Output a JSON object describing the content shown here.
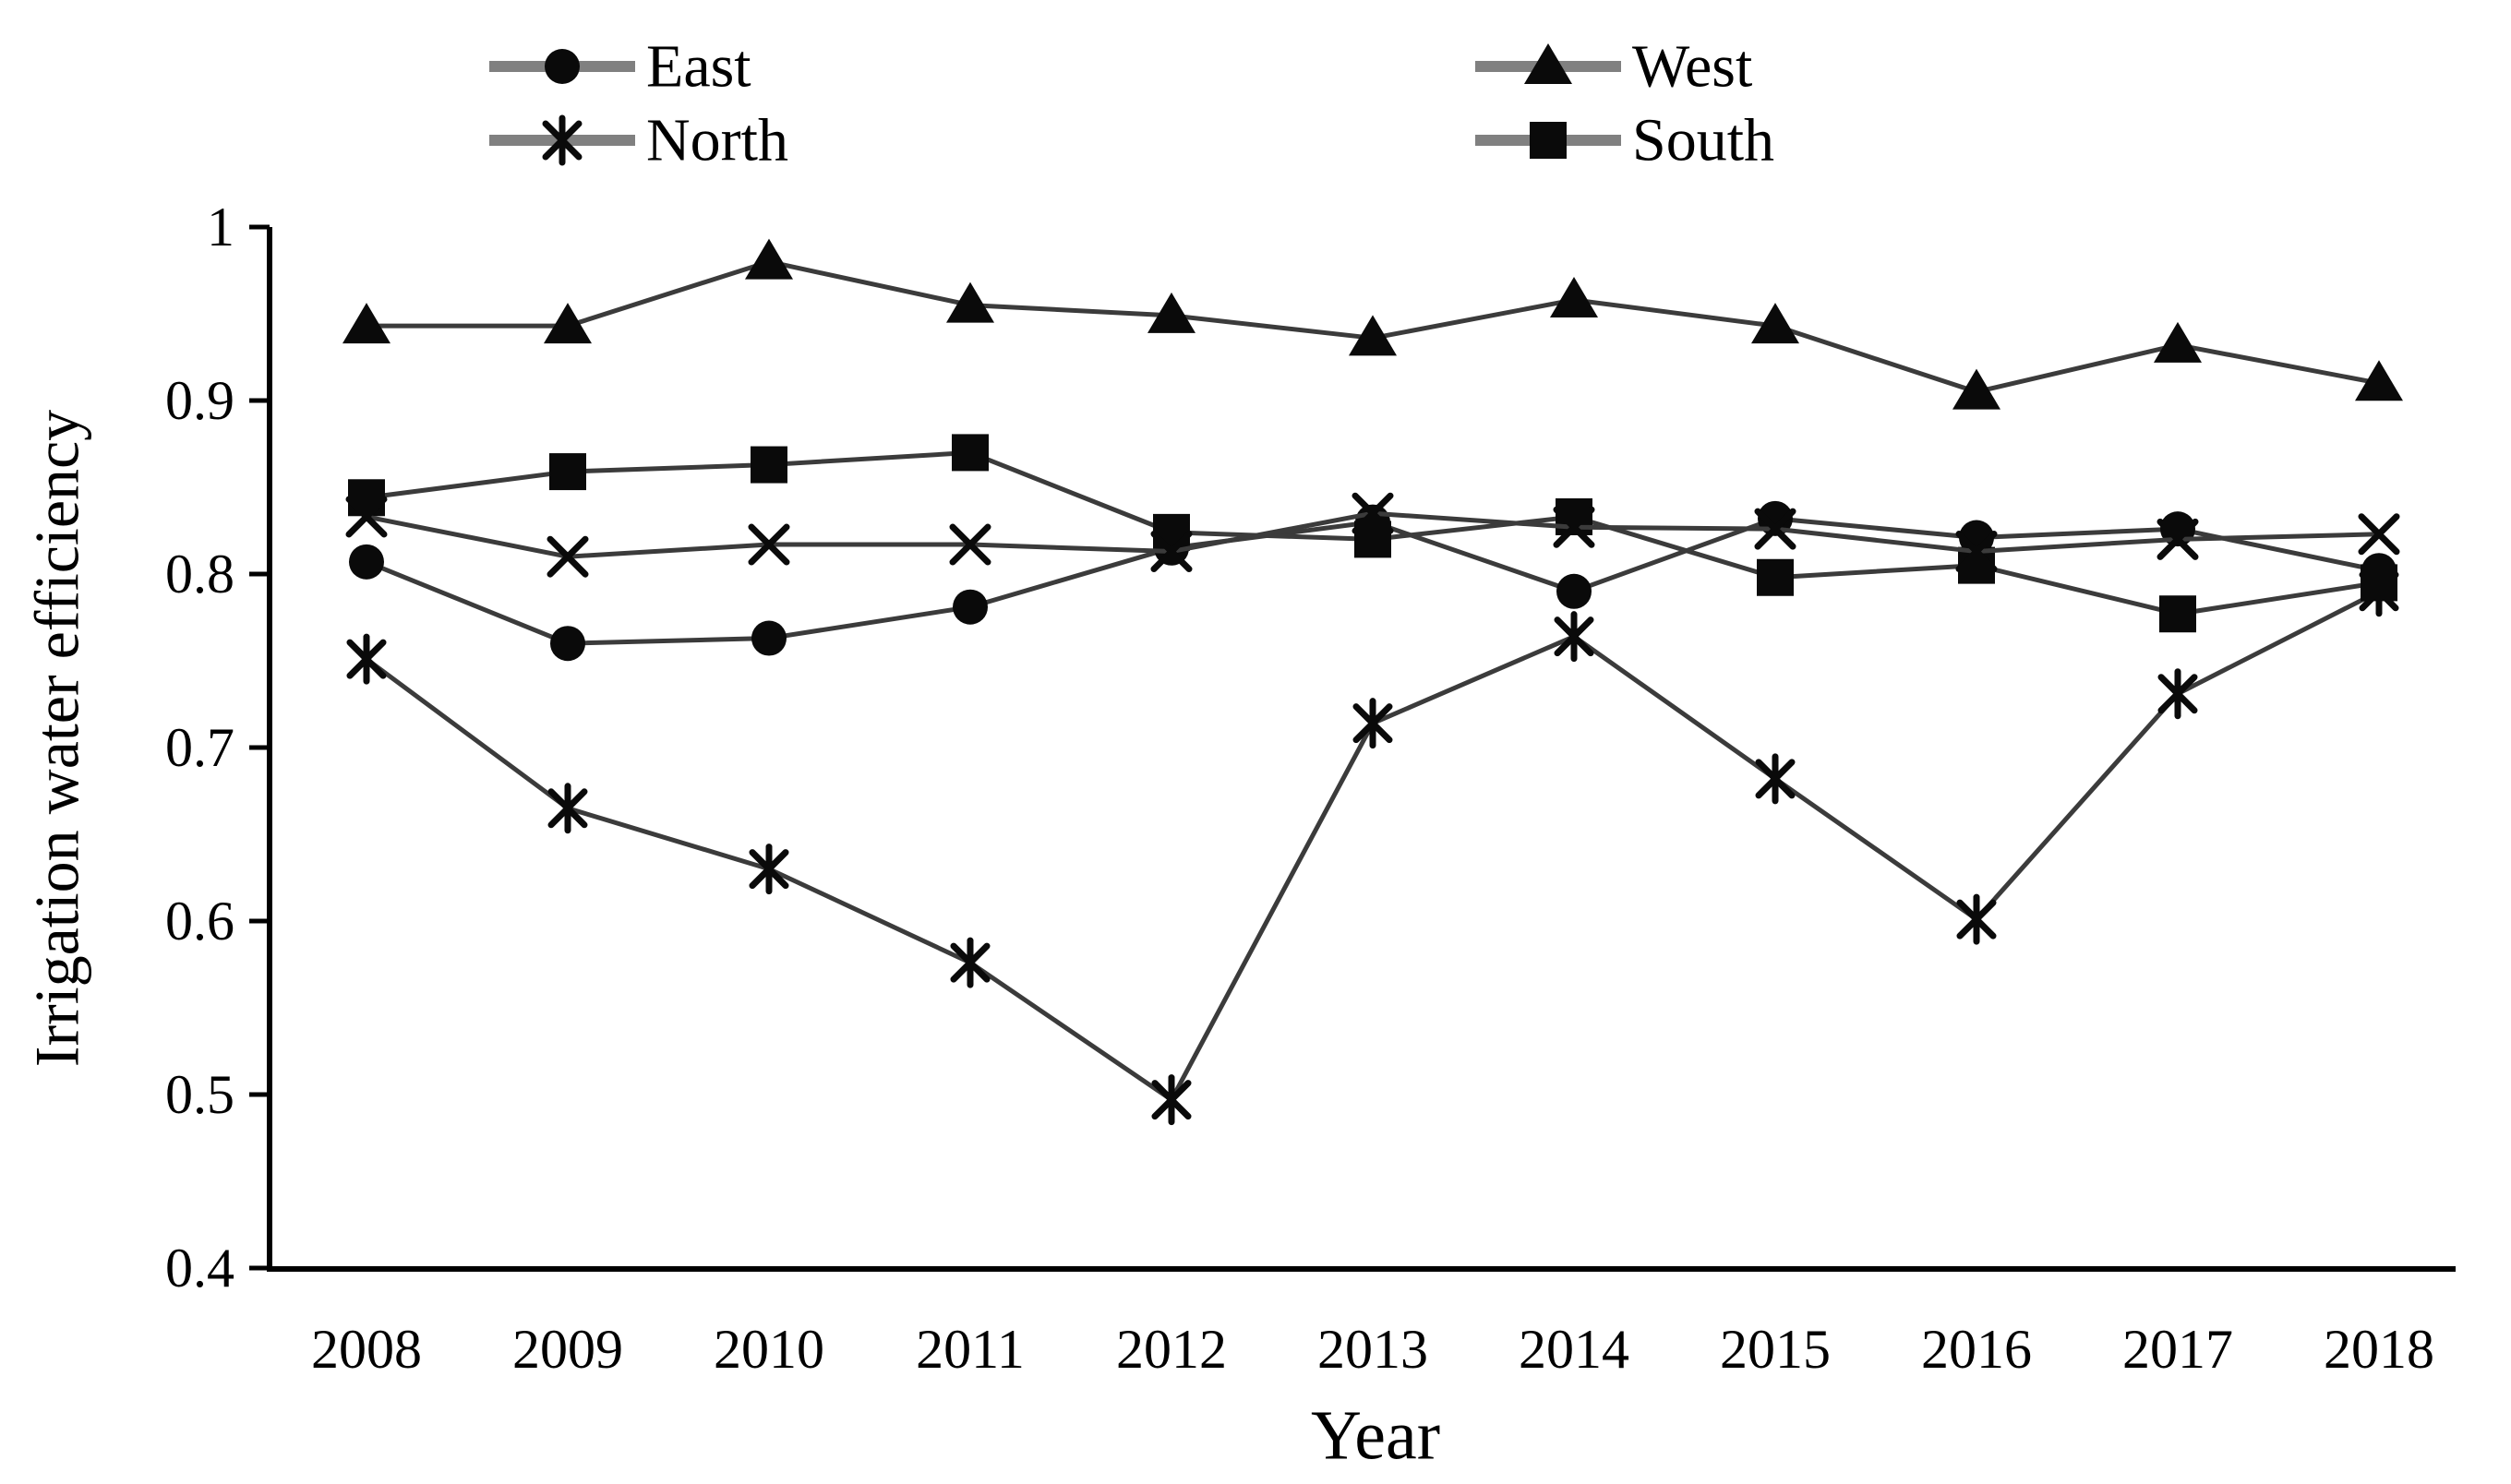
{
  "chart_data": {
    "type": "line",
    "title": "",
    "xlabel": "Year",
    "ylabel": "Irrigation water efficiency",
    "x_categories": [
      "2008",
      "2009",
      "2010",
      "2011",
      "2012",
      "2013",
      "2014",
      "2015",
      "2016",
      "2017",
      "2018"
    ],
    "ylim": [
      0.4,
      1.0
    ],
    "yticks": [
      {
        "value": 1.0,
        "label": "1"
      },
      {
        "value": 0.9,
        "label": "0.9"
      },
      {
        "value": 0.8,
        "label": "0.8"
      },
      {
        "value": 0.7,
        "label": "0.7"
      },
      {
        "value": 0.6,
        "label": "0.6"
      },
      {
        "value": 0.5,
        "label": "0.5"
      },
      {
        "value": 0.4,
        "label": "0.4"
      }
    ],
    "grid": false,
    "legend_position": "top, two columns",
    "series": [
      {
        "name": "west",
        "label": "West",
        "marker": "triangle",
        "values": [
          0.943,
          0.943,
          0.98,
          0.955,
          0.949,
          0.936,
          0.958,
          0.943,
          0.905,
          0.932,
          0.91
        ]
      },
      {
        "name": "east",
        "label": "East",
        "marker": "circle",
        "values": [
          0.807,
          0.76,
          0.763,
          0.781,
          0.815,
          0.83,
          0.79,
          0.832,
          0.821,
          0.826,
          0.802
        ]
      },
      {
        "name": "north",
        "label": "North",
        "marker": "star",
        "values": [
          0.751,
          0.665,
          0.63,
          0.576,
          0.497,
          0.714,
          0.764,
          0.682,
          0.601,
          0.731,
          0.79
        ]
      },
      {
        "name": "south",
        "label": "South",
        "marker": "square",
        "values": [
          0.844,
          0.859,
          0.863,
          0.87,
          0.824,
          0.82,
          0.833,
          0.798,
          0.805,
          0.777,
          0.795
        ]
      },
      {
        "name": "unlabeled-x",
        "label": "",
        "marker": "x",
        "values": [
          0.833,
          0.81,
          0.817,
          0.817,
          0.813,
          0.835,
          0.827,
          0.826,
          0.813,
          0.82,
          0.823
        ]
      }
    ],
    "legend": [
      {
        "series": "east",
        "label": "East",
        "row": 0,
        "col": 0
      },
      {
        "series": "west",
        "label": "West",
        "row": 0,
        "col": 1
      },
      {
        "series": "north",
        "label": "North",
        "row": 1,
        "col": 0
      },
      {
        "series": "south",
        "label": "South",
        "row": 1,
        "col": 1
      }
    ],
    "colors": {
      "background": "#ffffff",
      "axis": "#000000",
      "text": "#000000",
      "series_line": "#3b3b3b",
      "marker_fill": "#0a0a0a",
      "legend_line": "#808080"
    }
  }
}
